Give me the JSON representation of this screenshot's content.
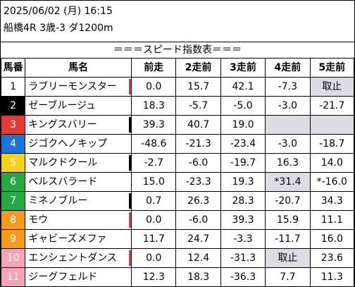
{
  "header": {
    "datetime": "2025/06/02 (月) 16:15",
    "race": "船橋4R 3歳-3 ダ1200m",
    "title": "＝＝＝スピード指数表＝＝＝"
  },
  "columns": [
    "馬番",
    "馬名",
    "前走",
    "2走前",
    "3走前",
    "4走前",
    "5走前"
  ],
  "colors": {
    "gate_bg": [
      "#ffffff",
      "#000000",
      "#e53935",
      "#1e73d8",
      "#f2d21b",
      "#27a844",
      "#f39a1f",
      "#f4a3b8"
    ],
    "gate_fg": [
      "#000000",
      "#ffffff",
      "#ffffff",
      "#ffffff",
      "#ffffff",
      "#ffffff",
      "#ffffff",
      "#ffffff"
    ],
    "mark_red": "#e53935",
    "mark_black": "#000000",
    "gray_cell": "#dcdce2"
  },
  "rows": [
    {
      "num": "1",
      "name": "ラブリーモンスター",
      "gate": 0,
      "mark": "red",
      "v": [
        "0.0",
        "15.7",
        "42.1",
        "-7.3",
        "取止"
      ],
      "gray": [
        false,
        false,
        false,
        false,
        true
      ]
    },
    {
      "num": "2",
      "name": "ゼーブルージュ",
      "gate": 1,
      "mark": "",
      "v": [
        "18.3",
        "-5.7",
        "-5.0",
        "-3.0",
        "-21.7"
      ],
      "gray": [
        false,
        false,
        false,
        false,
        false
      ]
    },
    {
      "num": "3",
      "name": "キングスバリー",
      "gate": 2,
      "mark": "black",
      "v": [
        "39.3",
        "40.7",
        "19.0",
        "",
        ""
      ],
      "gray": [
        false,
        false,
        false,
        true,
        true
      ]
    },
    {
      "num": "4",
      "name": "ジゴクヘノキップ",
      "gate": 3,
      "mark": "",
      "v": [
        "-48.6",
        "-21.3",
        "-23.4",
        "-3.0",
        "-18.7"
      ],
      "gray": [
        false,
        false,
        false,
        false,
        false
      ]
    },
    {
      "num": "5",
      "name": "マルクドクール",
      "gate": 4,
      "mark": "black",
      "v": [
        "-2.7",
        "-6.0",
        "-19.7",
        "16.3",
        "14.0"
      ],
      "gray": [
        false,
        false,
        false,
        false,
        false
      ]
    },
    {
      "num": "6",
      "name": "ベルスバラード",
      "gate": 5,
      "mark": "",
      "v": [
        "15.0",
        "-23.3",
        "19.3",
        "*31.4",
        "*-16.0"
      ],
      "gray": [
        false,
        false,
        false,
        true,
        false
      ]
    },
    {
      "num": "7",
      "name": "ミネノブルー",
      "gate": 5,
      "mark": "black",
      "v": [
        "0.7",
        "26.3",
        "28.3",
        "-20.7",
        "34.3"
      ],
      "gray": [
        false,
        false,
        false,
        false,
        false
      ]
    },
    {
      "num": "8",
      "name": "モウ",
      "gate": 6,
      "mark": "red",
      "v": [
        "0.0",
        "-6.0",
        "39.3",
        "15.9",
        "11.1"
      ],
      "gray": [
        false,
        false,
        false,
        false,
        false
      ]
    },
    {
      "num": "9",
      "name": "ギャビーズメファ",
      "gate": 6,
      "mark": "",
      "v": [
        "11.7",
        "24.7",
        "-3.3",
        "-11.7",
        "16.0"
      ],
      "gray": [
        false,
        false,
        false,
        false,
        false
      ]
    },
    {
      "num": "10",
      "name": "エンシェントダンス",
      "gate": 7,
      "mark": "red",
      "v": [
        "0.0",
        "12.4",
        "-31.3",
        "取止",
        "23.6"
      ],
      "gray": [
        false,
        false,
        false,
        true,
        false
      ]
    },
    {
      "num": "11",
      "name": "ジーグフェルド",
      "gate": 7,
      "mark": "",
      "v": [
        "12.3",
        "18.3",
        "-36.3",
        "7.7",
        "11.3"
      ],
      "gray": [
        false,
        false,
        false,
        false,
        false
      ]
    }
  ]
}
